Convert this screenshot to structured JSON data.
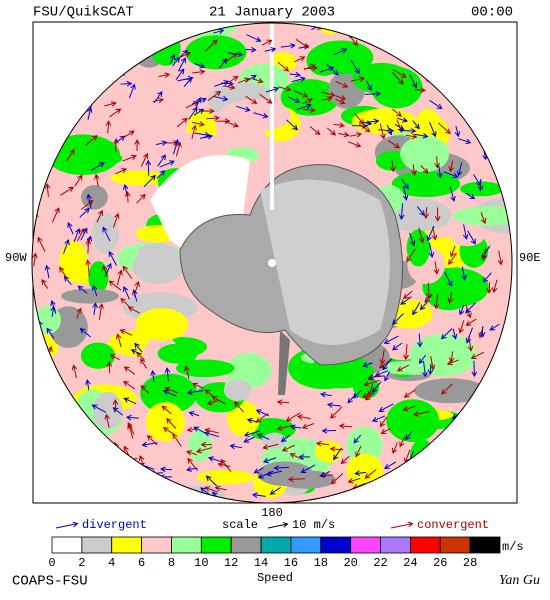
{
  "header": {
    "left": "FSU/QuikSCAT",
    "center": "21 January 2003",
    "right": "00:00"
  },
  "map": {
    "west_label": "90W",
    "east_label": "90E",
    "bottom_label": "180"
  },
  "legend": {
    "divergent": "divergent",
    "scale": "scale",
    "scale_value": "10 m/s",
    "convergent": "convergent",
    "divergent_color": "#0000cc",
    "convergent_color": "#aa0000"
  },
  "colorbar": {
    "ticks": [
      0,
      2,
      4,
      6,
      8,
      10,
      12,
      14,
      16,
      18,
      20,
      22,
      24,
      26,
      28
    ],
    "unit": "m/s",
    "label": "Speed",
    "colors": [
      "#ffffff",
      "#cccccc",
      "#ffff00",
      "#ffc8c8",
      "#99ff99",
      "#00ee00",
      "#999999",
      "#00aaaa",
      "#3399ff",
      "#0000cc",
      "#ff44ff",
      "#aa77ff",
      "#ff0000",
      "#cc3300",
      "#000000"
    ]
  },
  "footer": {
    "left": "COAPS-FSU",
    "right": "Yan Gu"
  }
}
